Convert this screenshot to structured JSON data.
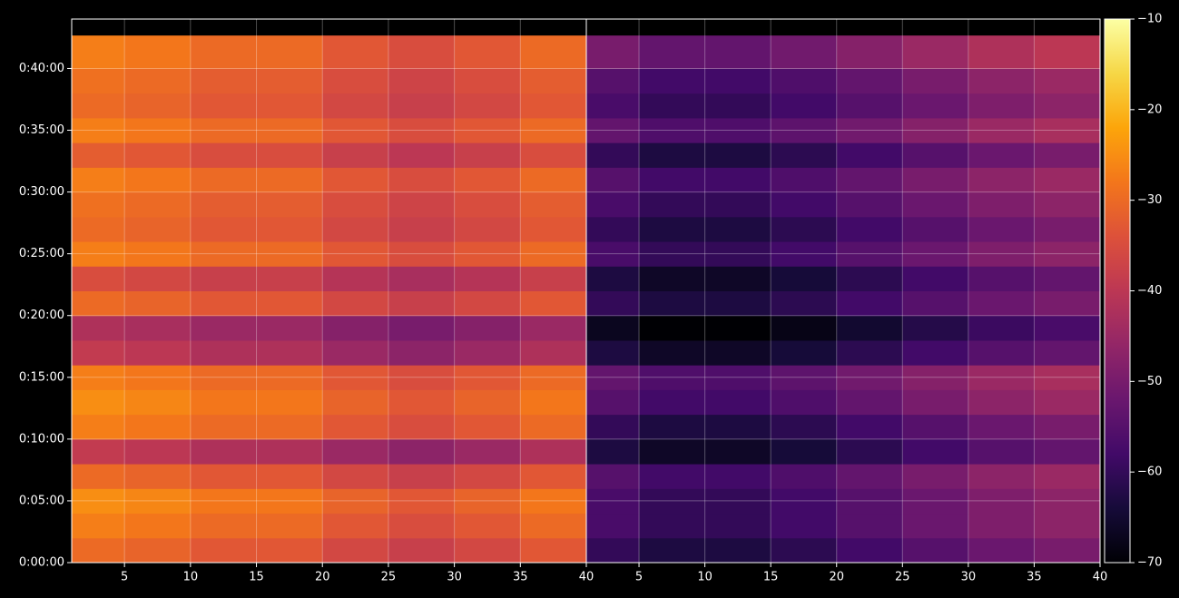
{
  "chart_data": [
    {
      "type": "heatmap",
      "xbins": [
        1,
        5,
        10,
        15,
        20,
        25,
        30,
        35,
        40
      ],
      "ybins": [
        0,
        120,
        240,
        360,
        480,
        600,
        720,
        840,
        960,
        1080,
        1200,
        1320,
        1440,
        1560,
        1680,
        1800,
        1920,
        2040,
        2160,
        2280,
        2400,
        2560
      ],
      "values": [
        [
          -30,
          -31,
          -33,
          -33,
          -36,
          -38,
          -36,
          -33
        ],
        [
          -27,
          -28,
          -30,
          -30,
          -33,
          -35,
          -33,
          -30
        ],
        [
          -25,
          -26,
          -28,
          -28,
          -31,
          -33,
          -31,
          -28
        ],
        [
          -30,
          -31,
          -33,
          -33,
          -36,
          -38,
          -36,
          -33
        ],
        [
          -39,
          -40,
          -42,
          -42,
          -45,
          -47,
          -45,
          -42
        ],
        [
          -27,
          -28,
          -30,
          -30,
          -33,
          -35,
          -33,
          -30
        ],
        [
          -25,
          -26,
          -28,
          -28,
          -31,
          -33,
          -31,
          -28
        ],
        [
          -27,
          -28,
          -30,
          -30,
          -33,
          -35,
          -33,
          -30
        ],
        [
          -39,
          -40,
          -42,
          -42,
          -45,
          -47,
          -45,
          -42
        ],
        [
          -42,
          -43,
          -45,
          -45,
          -48,
          -50,
          -48,
          -45
        ],
        [
          -30,
          -31,
          -33,
          -33,
          -36,
          -38,
          -36,
          -33
        ],
        [
          -35,
          -36,
          -38,
          -38,
          -41,
          -43,
          -41,
          -38
        ],
        [
          -27,
          -28,
          -30,
          -30,
          -33,
          -35,
          -33,
          -30
        ],
        [
          -30,
          -31,
          -33,
          -33,
          -36,
          -38,
          -36,
          -33
        ],
        [
          -29,
          -30,
          -32,
          -32,
          -35,
          -37,
          -35,
          -32
        ],
        [
          -27,
          -28,
          -30,
          -30,
          -33,
          -35,
          -33,
          -30
        ],
        [
          -32,
          -33,
          -35,
          -35,
          -38,
          -40,
          -38,
          -35
        ],
        [
          -27,
          -28,
          -30,
          -30,
          -33,
          -35,
          -33,
          -30
        ],
        [
          -30,
          -31,
          -33,
          -33,
          -36,
          -38,
          -36,
          -33
        ],
        [
          -29,
          -30,
          -32,
          -32,
          -35,
          -37,
          -35,
          -32
        ],
        [
          -27,
          -28,
          -30,
          -30,
          -33,
          -35,
          -33,
          -30
        ]
      ],
      "xlim": [
        1,
        40
      ],
      "xticks": [
        5,
        10,
        15,
        20,
        25,
        30,
        35,
        40
      ],
      "ylim": [
        0,
        2640
      ],
      "yticks": [
        {
          "value": 0,
          "label": "0:00:00"
        },
        {
          "value": 300,
          "label": "0:05:00"
        },
        {
          "value": 600,
          "label": "0:10:00"
        },
        {
          "value": 900,
          "label": "0:15:00"
        },
        {
          "value": 1200,
          "label": "0:20:00"
        },
        {
          "value": 1500,
          "label": "0:25:00"
        },
        {
          "value": 1800,
          "label": "0:30:00"
        },
        {
          "value": 2100,
          "label": "0:35:00"
        },
        {
          "value": 2400,
          "label": "0:40:00"
        }
      ],
      "grid": true
    },
    {
      "type": "heatmap",
      "xbins": [
        1,
        5,
        10,
        15,
        20,
        25,
        30,
        35,
        40
      ],
      "ybins": [
        0,
        120,
        240,
        360,
        480,
        600,
        720,
        840,
        960,
        1080,
        1200,
        1320,
        1440,
        1560,
        1680,
        1800,
        1920,
        2040,
        2160,
        2280,
        2400,
        2560
      ],
      "values": [
        [
          -60,
          -63,
          -63,
          -61,
          -58,
          -55,
          -52,
          -50
        ],
        [
          -57,
          -60,
          -60,
          -58,
          -55,
          -52,
          -49,
          -47
        ],
        [
          -57,
          -60,
          -60,
          -58,
          -55,
          -52,
          -49,
          -47
        ],
        [
          -55,
          -58,
          -58,
          -56,
          -53,
          -50,
          -47,
          -45
        ],
        [
          -63,
          -66,
          -66,
          -64,
          -61,
          -58,
          -55,
          -53
        ],
        [
          -60,
          -63,
          -63,
          -61,
          -58,
          -55,
          -52,
          -50
        ],
        [
          -55,
          -58,
          -58,
          -56,
          -53,
          -50,
          -47,
          -45
        ],
        [
          -53,
          -56,
          -56,
          -54,
          -51,
          -48,
          -45,
          -43
        ],
        [
          -63,
          -66,
          -66,
          -64,
          -61,
          -58,
          -55,
          -53
        ],
        [
          -67,
          -70,
          -70,
          -68,
          -65,
          -62,
          -59,
          -57
        ],
        [
          -60,
          -63,
          -63,
          -61,
          -58,
          -55,
          -52,
          -50
        ],
        [
          -63,
          -66,
          -66,
          -64,
          -61,
          -58,
          -55,
          -53
        ],
        [
          -57,
          -60,
          -60,
          -58,
          -55,
          -52,
          -49,
          -47
        ],
        [
          -60,
          -63,
          -63,
          -61,
          -58,
          -55,
          -52,
          -50
        ],
        [
          -57,
          -60,
          -60,
          -58,
          -55,
          -52,
          -49,
          -47
        ],
        [
          -55,
          -58,
          -58,
          -56,
          -53,
          -50,
          -47,
          -45
        ],
        [
          -60,
          -63,
          -63,
          -61,
          -58,
          -55,
          -52,
          -50
        ],
        [
          -53,
          -56,
          -56,
          -54,
          -51,
          -48,
          -45,
          -43
        ],
        [
          -57,
          -60,
          -60,
          -58,
          -55,
          -52,
          -49,
          -47
        ],
        [
          -55,
          -58,
          -58,
          -56,
          -53,
          -50,
          -47,
          -45
        ],
        [
          -50,
          -53,
          -53,
          -51,
          -48,
          -45,
          -42,
          -40
        ]
      ],
      "xlim": [
        1,
        40
      ],
      "xticks": [
        5,
        10,
        15,
        20,
        25,
        30,
        35,
        40
      ],
      "grid": true,
      "colorbar": {
        "colormap": "inferno",
        "lim": [
          -70,
          -10
        ],
        "ticks": [
          {
            "value": -70,
            "label": "−70"
          },
          {
            "value": -60,
            "label": "−60"
          },
          {
            "value": -50,
            "label": "−50"
          },
          {
            "value": -40,
            "label": "−40"
          },
          {
            "value": -30,
            "label": "−30"
          },
          {
            "value": -20,
            "label": "−20"
          },
          {
            "value": -10,
            "label": "−10"
          }
        ]
      }
    }
  ]
}
